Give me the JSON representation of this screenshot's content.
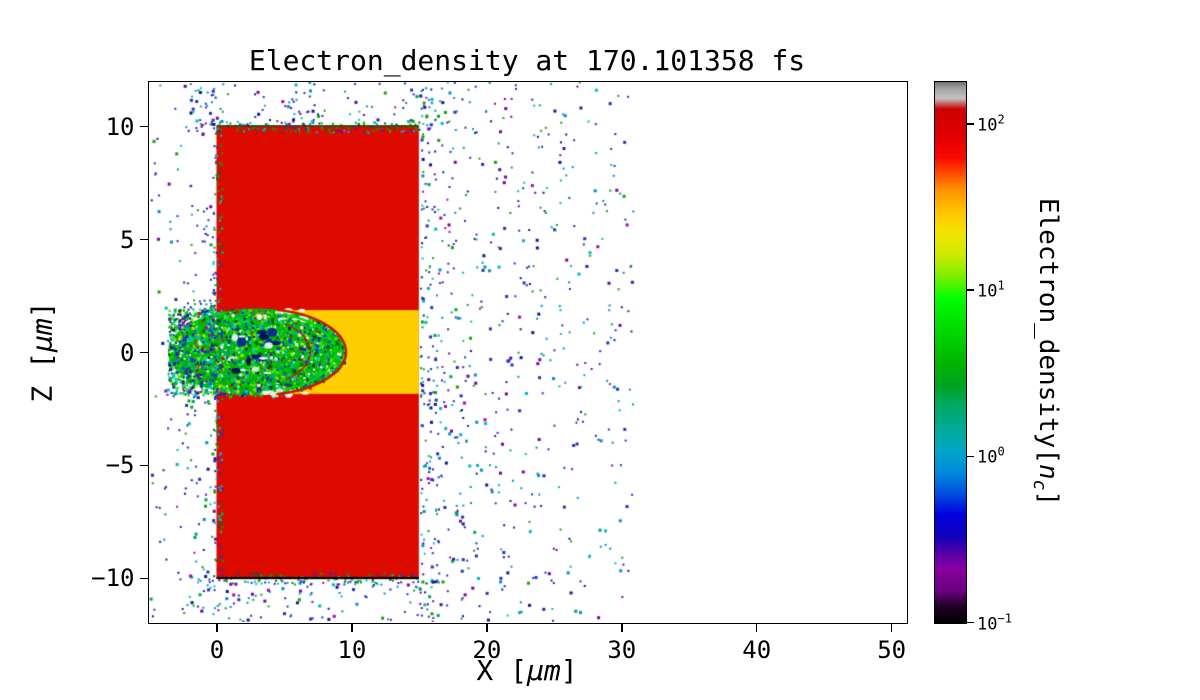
{
  "chart_data": {
    "type": "heatmap",
    "title": "Electron_density at 170.101358 fs",
    "xlabel": {
      "pre": "X [",
      "var": "μm",
      "post": "]"
    },
    "ylabel": {
      "pre": "Z [",
      "var": "μm",
      "post": "]"
    },
    "xlim": [
      -5,
      51.1
    ],
    "ylim": [
      -11.95,
      11.95
    ],
    "x_ticks": [
      0,
      10,
      20,
      30,
      40,
      50
    ],
    "y_ticks": [
      10,
      5,
      0,
      -5,
      -10
    ],
    "colorbar": {
      "label": {
        "pre": "Electron_density[",
        "var": "n",
        "sub": "c",
        "post": "]"
      },
      "scale": "log",
      "colormap": "nipy_spectral",
      "vmin_exp": -1,
      "vmax_exp": 2.25,
      "tick_exps": [
        2,
        1,
        0,
        -1
      ],
      "gradient_stops": [
        [
          0,
          "#000000"
        ],
        [
          3,
          "#1e0024"
        ],
        [
          6,
          "#6a0080"
        ],
        [
          10,
          "#8800a0"
        ],
        [
          13,
          "#5500aa"
        ],
        [
          16,
          "#1100bb"
        ],
        [
          20,
          "#0000dd"
        ],
        [
          24,
          "#0050dd"
        ],
        [
          28,
          "#008cdd"
        ],
        [
          32,
          "#00a8c4"
        ],
        [
          36,
          "#00aa96"
        ],
        [
          40,
          "#00aa66"
        ],
        [
          44,
          "#00a21e"
        ],
        [
          48,
          "#00b400"
        ],
        [
          52,
          "#00cc00"
        ],
        [
          56,
          "#00e400"
        ],
        [
          60,
          "#00ff00"
        ],
        [
          64,
          "#7cee00"
        ],
        [
          68,
          "#ccea00"
        ],
        [
          72,
          "#f2e400"
        ],
        [
          76,
          "#ffc400"
        ],
        [
          80,
          "#ff9400"
        ],
        [
          83,
          "#ff4e00"
        ],
        [
          86,
          "#fa0800"
        ],
        [
          90,
          "#e00000"
        ],
        [
          95,
          "#cc0000"
        ],
        [
          97,
          "#c4c4c4"
        ],
        [
          99,
          "#9c9c9c"
        ],
        [
          100,
          "#6f6f6f"
        ]
      ]
    },
    "regions": {
      "target_block": {
        "x": [
          0,
          15
        ],
        "z": [
          -10,
          10
        ],
        "color": "#dd0a00",
        "approx_density_nc": 150
      },
      "channel": {
        "x": [
          5.4,
          15
        ],
        "z": [
          -1.85,
          1.85
        ],
        "color": "#ffce00",
        "approx_density_nc": 30
      },
      "bubble": {
        "cx": 3.0,
        "cz": 0,
        "rx": 6.6,
        "rz": 1.92,
        "base_color": "#00b400",
        "front_arc_color": "#cc1400",
        "approx_density_nc": 3,
        "speckle_seed": 5,
        "speckle_count": 3000,
        "palette": [
          [
            "#003cc8",
            0.1
          ],
          [
            "#0a1f9a",
            0.08
          ],
          [
            "#00c8c8",
            0.12
          ],
          [
            "#00a87c",
            0.1
          ],
          [
            "#00d400",
            0.22
          ],
          [
            "#49e800",
            0.12
          ],
          [
            "#b4e400",
            0.08
          ],
          [
            "#064c00",
            0.06
          ],
          [
            "#c81400",
            0.05
          ],
          [
            "#e8ffe8",
            0.07
          ]
        ]
      },
      "white_pockets": {
        "seed": 13,
        "count": 26,
        "color": "#f2f7ee"
      },
      "edge_speckle": {
        "seed": 9,
        "left_count": 200,
        "top_count": 130,
        "bottom_count": 110,
        "colors": [
          [
            "#00a800",
            0.3
          ],
          [
            "#00bcd4",
            0.25
          ],
          [
            "#2433c0",
            0.2
          ],
          [
            "#7a00a8",
            0.1
          ],
          [
            "#0b6e00",
            0.15
          ]
        ]
      }
    },
    "scatter_clouds": [
      {
        "name": "right-halo",
        "seed": 101,
        "count": 700,
        "x": [
          15.1,
          31
        ],
        "z": [
          -12,
          12
        ],
        "bias_axis": "x",
        "bias": "start",
        "bias_pow": 2.0
      },
      {
        "name": "left-halo",
        "seed": 102,
        "count": 180,
        "x": [
          -4.9,
          -0.1
        ],
        "z": [
          -12,
          12
        ],
        "bias_axis": "x",
        "bias": "end",
        "bias_pow": 1.6
      },
      {
        "name": "top-band",
        "seed": 103,
        "count": 150,
        "x": [
          -2,
          16.8
        ],
        "z": [
          10.05,
          12.3
        ],
        "bias_axis": "z",
        "bias": "start",
        "bias_pow": 1.8
      },
      {
        "name": "bottom-band",
        "seed": 104,
        "count": 150,
        "x": [
          -2,
          16.8
        ],
        "z": [
          -12.3,
          -10.05
        ],
        "bias_axis": "z",
        "bias": "end",
        "bias_pow": 1.8
      },
      {
        "name": "entrance-plume",
        "seed": 106,
        "count": 120,
        "x": [
          -2.6,
          -0.05
        ],
        "z": [
          -2.3,
          2.3
        ],
        "bias_axis": "x",
        "bias": "end",
        "bias_pow": 1.5
      },
      {
        "name": "sparse-field",
        "seed": 105,
        "count": 80,
        "x": [
          -4.5,
          31
        ],
        "z": [
          -12.2,
          12.2
        ],
        "bias_axis": "none",
        "bias": "none",
        "bias_pow": 1
      }
    ],
    "scatter_palette": [
      [
        "#2433c0",
        0.24
      ],
      [
        "#008fd4",
        0.14
      ],
      [
        "#00b8c8",
        0.12
      ],
      [
        "#00a06a",
        0.08
      ],
      [
        "#12a500",
        0.09
      ],
      [
        "#7a00a8",
        0.11
      ],
      [
        "#0b1a8a",
        0.12
      ],
      [
        "#4b0f9e",
        0.06
      ],
      [
        "#b400b4",
        0.04
      ]
    ],
    "scatter_density_nc_range": [
      0.1,
      2
    ]
  }
}
